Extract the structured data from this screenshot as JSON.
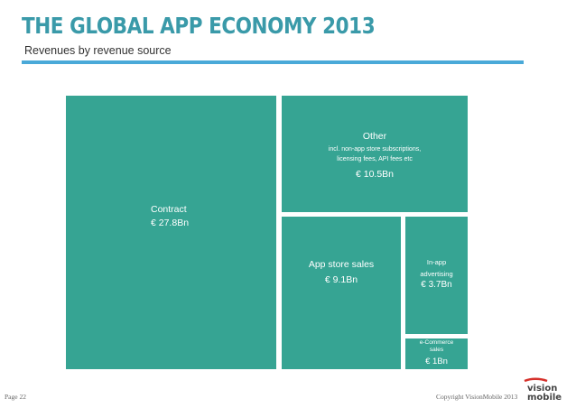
{
  "header": {
    "title": "THE GLOBAL APP ECONOMY 2013",
    "subtitle": "Revenues by revenue source"
  },
  "footer": {
    "page": "Page 22",
    "copyright": "Copyright VisionMobile 2013"
  },
  "logo": {
    "line1": "vision",
    "line2": "mobile"
  },
  "colors": {
    "title": "#3a9aa9",
    "tile": "#36a493",
    "rule": "#4aa9d8"
  },
  "chart_data": {
    "type": "treemap",
    "title": "Revenues by revenue source",
    "unit": "€ Bn",
    "items": [
      {
        "name": "Contract",
        "label": "Contract",
        "value": 27.8,
        "value_label": "€ 27.8Bn",
        "note": ""
      },
      {
        "name": "Other",
        "label": "Other",
        "value": 10.5,
        "value_label": "€ 10.5Bn",
        "note": "incl. non-app store subscriptions, licensing fees, API fees etc"
      },
      {
        "name": "App store sales",
        "label": "App store sales",
        "value": 9.1,
        "value_label": "€ 9.1Bn",
        "note": ""
      },
      {
        "name": "In-app advertising",
        "label": "In-app advertising",
        "value": 3.7,
        "value_label": "€ 3.7Bn",
        "note": ""
      },
      {
        "name": "e-Commerce sales",
        "label": "e-Commerce sales",
        "value": 1.0,
        "value_label": "€ 1Bn",
        "note": ""
      }
    ]
  }
}
